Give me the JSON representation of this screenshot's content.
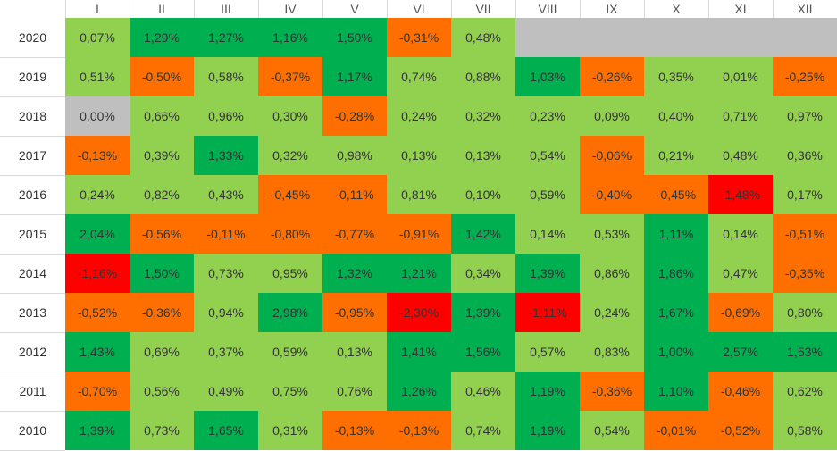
{
  "chart_data": {
    "type": "heatmap",
    "months": [
      "I",
      "II",
      "III",
      "IV",
      "V",
      "VI",
      "VII",
      "VIII",
      "IX",
      "X",
      "XI",
      "XII"
    ],
    "colors": {
      "strong_pos": "#00b050",
      "pos": "#92d050",
      "neg": "#ff6f00",
      "strong_neg": "#ff0000",
      "empty": "#bfbfbf"
    },
    "rows": [
      {
        "year": "2020",
        "values": [
          "0,07%",
          "1,29%",
          "1,27%",
          "1,16%",
          "1,50%",
          "-0,31%",
          "0,48%",
          null,
          null,
          null,
          null,
          null
        ],
        "cls": [
          "pos",
          "strong_pos",
          "strong_pos",
          "strong_pos",
          "strong_pos",
          "neg",
          "pos",
          "empty",
          "empty",
          "empty",
          "empty",
          "empty"
        ]
      },
      {
        "year": "2019",
        "values": [
          "0,51%",
          "-0,50%",
          "0,58%",
          "-0,37%",
          "1,17%",
          "0,74%",
          "0,88%",
          "1,03%",
          "-0,26%",
          "0,35%",
          "0,01%",
          "-0,25%"
        ],
        "cls": [
          "pos",
          "neg",
          "pos",
          "neg",
          "strong_pos",
          "pos",
          "pos",
          "strong_pos",
          "neg",
          "pos",
          "pos",
          "neg"
        ]
      },
      {
        "year": "2018",
        "values": [
          "0,00%",
          "0,66%",
          "0,96%",
          "0,30%",
          "-0,28%",
          "0,24%",
          "0,32%",
          "0,23%",
          "0,09%",
          "0,40%",
          "0,71%",
          "0,97%"
        ],
        "cls": [
          "empty",
          "pos",
          "pos",
          "pos",
          "neg",
          "pos",
          "pos",
          "pos",
          "pos",
          "pos",
          "pos",
          "pos"
        ]
      },
      {
        "year": "2017",
        "values": [
          "-0,13%",
          "0,39%",
          "1,33%",
          "0,32%",
          "0,98%",
          "0,13%",
          "0,13%",
          "0,54%",
          "-0,06%",
          "0,21%",
          "0,48%",
          "0,36%"
        ],
        "cls": [
          "neg",
          "pos",
          "strong_pos",
          "pos",
          "pos",
          "pos",
          "pos",
          "pos",
          "neg",
          "pos",
          "pos",
          "pos"
        ]
      },
      {
        "year": "2016",
        "values": [
          "0,24%",
          "0,82%",
          "0,43%",
          "-0,45%",
          "-0,11%",
          "0,81%",
          "0,10%",
          "0,59%",
          "-0,40%",
          "-0,45%",
          "-1,48%",
          "0,17%"
        ],
        "cls": [
          "pos",
          "pos",
          "pos",
          "neg",
          "neg",
          "pos",
          "pos",
          "pos",
          "neg",
          "neg",
          "strong_neg",
          "pos"
        ]
      },
      {
        "year": "2015",
        "values": [
          "2,04%",
          "-0,56%",
          "-0,11%",
          "-0,80%",
          "-0,77%",
          "-0,91%",
          "1,42%",
          "0,14%",
          "0,53%",
          "1,11%",
          "0,14%",
          "-0,51%"
        ],
        "cls": [
          "strong_pos",
          "neg",
          "neg",
          "neg",
          "neg",
          "neg",
          "strong_pos",
          "pos",
          "pos",
          "strong_pos",
          "pos",
          "neg"
        ]
      },
      {
        "year": "2014",
        "values": [
          "-1,16%",
          "1,50%",
          "0,73%",
          "0,95%",
          "1,32%",
          "1,21%",
          "0,34%",
          "1,39%",
          "0,86%",
          "1,86%",
          "0,47%",
          "-0,35%"
        ],
        "cls": [
          "strong_neg",
          "strong_pos",
          "pos",
          "pos",
          "strong_pos",
          "strong_pos",
          "pos",
          "strong_pos",
          "pos",
          "strong_pos",
          "pos",
          "neg"
        ]
      },
      {
        "year": "2013",
        "values": [
          "-0,52%",
          "-0,36%",
          "0,94%",
          "2,98%",
          "-0,95%",
          "-2,30%",
          "1,39%",
          "-1,11%",
          "0,24%",
          "1,67%",
          "-0,69%",
          "0,80%"
        ],
        "cls": [
          "neg",
          "neg",
          "pos",
          "strong_pos",
          "neg",
          "strong_neg",
          "strong_pos",
          "strong_neg",
          "pos",
          "strong_pos",
          "neg",
          "pos"
        ]
      },
      {
        "year": "2012",
        "values": [
          "1,43%",
          "0,69%",
          "0,37%",
          "0,59%",
          "0,13%",
          "1,41%",
          "1,56%",
          "0,57%",
          "0,83%",
          "1,00%",
          "2,57%",
          "1,53%"
        ],
        "cls": [
          "strong_pos",
          "pos",
          "pos",
          "pos",
          "pos",
          "strong_pos",
          "strong_pos",
          "pos",
          "pos",
          "strong_pos",
          "strong_pos",
          "strong_pos"
        ]
      },
      {
        "year": "2011",
        "values": [
          "-0,70%",
          "0,56%",
          "0,49%",
          "0,75%",
          "0,76%",
          "1,26%",
          "0,46%",
          "1,19%",
          "-0,36%",
          "1,10%",
          "-0,46%",
          "0,62%"
        ],
        "cls": [
          "neg",
          "pos",
          "pos",
          "pos",
          "pos",
          "strong_pos",
          "pos",
          "strong_pos",
          "neg",
          "strong_pos",
          "neg",
          "pos"
        ]
      },
      {
        "year": "2010",
        "values": [
          "1,39%",
          "0,73%",
          "1,65%",
          "0,31%",
          "-0,13%",
          "-0,13%",
          "0,74%",
          "1,19%",
          "0,54%",
          "-0,01%",
          "-0,52%",
          "0,58%"
        ],
        "cls": [
          "strong_pos",
          "pos",
          "strong_pos",
          "pos",
          "neg",
          "neg",
          "pos",
          "strong_pos",
          "pos",
          "neg",
          "neg",
          "pos"
        ]
      }
    ]
  }
}
